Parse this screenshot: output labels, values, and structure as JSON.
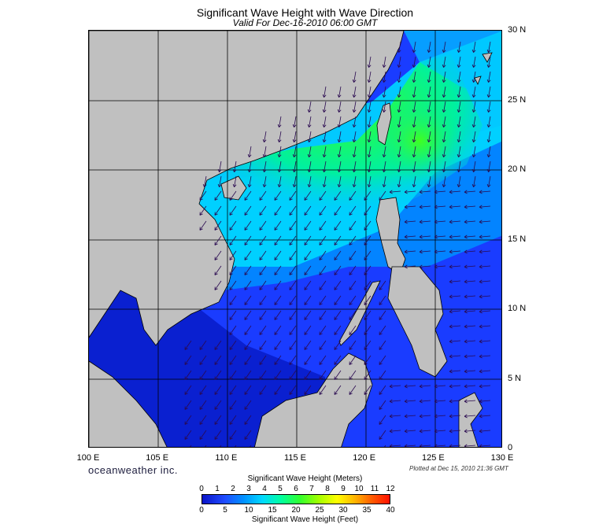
{
  "header": {
    "title": "Significant Wave Height with Wave Direction",
    "subtitle": "Valid For Dec-16-2010 06:00 GMT"
  },
  "axes": {
    "lat_labels": [
      "30 N",
      "25 N",
      "20 N",
      "15 N",
      "10 N",
      "5 N",
      "0"
    ],
    "lat_values": [
      30,
      25,
      20,
      15,
      10,
      5,
      0
    ],
    "lon_labels": [
      "100 E",
      "105 E",
      "110 E",
      "115 E",
      "120 E",
      "125 E",
      "130 E"
    ],
    "lon_values": [
      100,
      105,
      110,
      115,
      120,
      125,
      130
    ]
  },
  "footer": {
    "brand": "oceanweather inc.",
    "plotted": "Plotted at Dec 15, 2010 21:36 GMT"
  },
  "colorbar": {
    "title_top": "Significant Wave Height (Meters)",
    "title_bottom": "Significant Wave Height (Feet)",
    "meters_ticks": [
      "0",
      "1",
      "2",
      "3",
      "4",
      "5",
      "6",
      "7",
      "8",
      "9",
      "10",
      "11",
      "12"
    ],
    "feet_ticks": [
      "0",
      "5",
      "10",
      "15",
      "20",
      "25",
      "30",
      "35",
      "40"
    ]
  },
  "colors": {
    "land": "#c0c0c0",
    "low_wave": "#0a14c8",
    "mid_wave": "#00ffa0",
    "high_wave": "#30ff30",
    "arrow": "#2a0a50"
  }
}
